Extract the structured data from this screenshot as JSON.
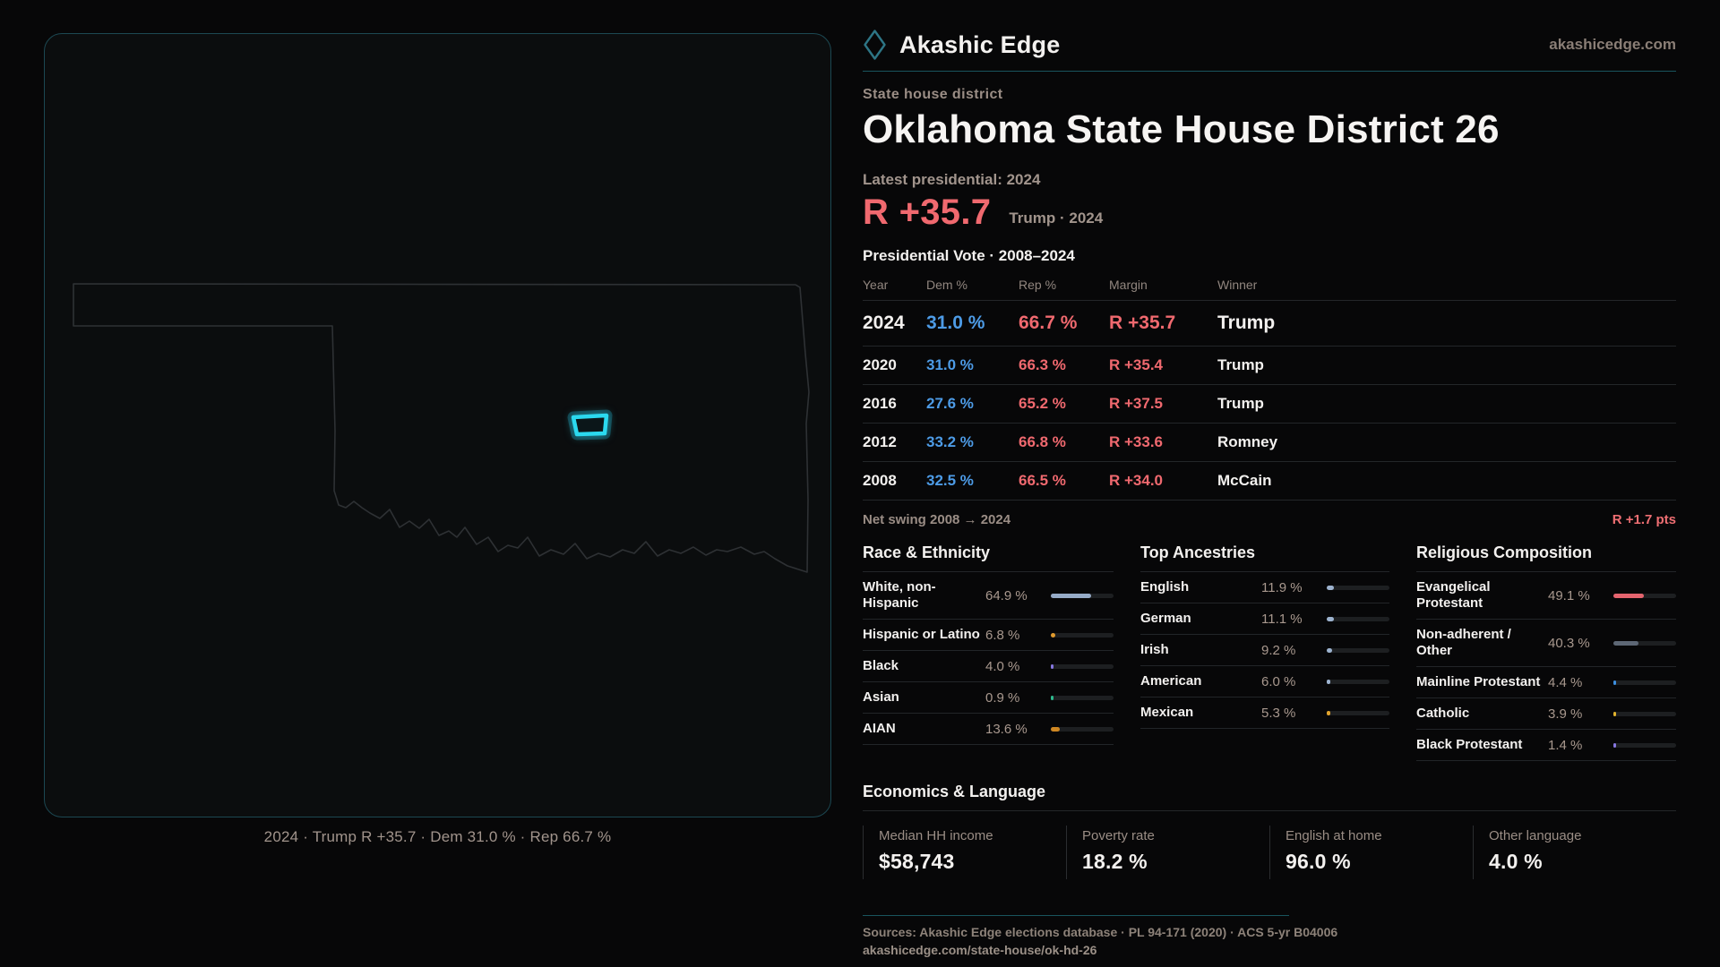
{
  "brand": {
    "name": "Akashic Edge",
    "domain": "akashicedge.com"
  },
  "eyebrow": "State house district",
  "title": "Oklahoma State House District 26",
  "latest": {
    "label": "Latest presidential: 2024",
    "margin": "R +35.7",
    "detail": "Trump · 2024"
  },
  "vote_table": {
    "title": "Presidential Vote · 2008–2024",
    "headers": [
      "Year",
      "Dem %",
      "Rep %",
      "Margin",
      "Winner"
    ],
    "rows": [
      {
        "year": "2024",
        "dem": "31.0 %",
        "rep": "66.7 %",
        "margin": "R +35.7",
        "winner": "Trump",
        "emphasis": true
      },
      {
        "year": "2020",
        "dem": "31.0 %",
        "rep": "66.3 %",
        "margin": "R +35.4",
        "winner": "Trump",
        "emphasis": false
      },
      {
        "year": "2016",
        "dem": "27.6 %",
        "rep": "65.2 %",
        "margin": "R +37.5",
        "winner": "Trump",
        "emphasis": false
      },
      {
        "year": "2012",
        "dem": "33.2 %",
        "rep": "66.8 %",
        "margin": "R +33.6",
        "winner": "Romney",
        "emphasis": false
      },
      {
        "year": "2008",
        "dem": "32.5 %",
        "rep": "66.5 %",
        "margin": "R +34.0",
        "winner": "McCain",
        "emphasis": false
      }
    ]
  },
  "net_swing": {
    "label": "Net swing 2008 → 2024",
    "value": "R +1.7 pts"
  },
  "demographics": [
    {
      "title": "Race & Ethnicity",
      "rows": [
        {
          "label": "White, non-Hispanic",
          "value": "64.9 %",
          "pct": 64.9,
          "color": "#96abc7"
        },
        {
          "label": "Hispanic or Latino",
          "value": "6.8 %",
          "pct": 6.8,
          "color": "#e09a2d"
        },
        {
          "label": "Black",
          "value": "4.0 %",
          "pct": 4.0,
          "color": "#8677e0"
        },
        {
          "label": "Asian",
          "value": "0.9 %",
          "pct": 0.9,
          "color": "#2eb98d"
        },
        {
          "label": "AIAN",
          "value": "13.6 %",
          "pct": 13.6,
          "color": "#cf8722"
        }
      ]
    },
    {
      "title": "Top Ancestries",
      "rows": [
        {
          "label": "English",
          "value": "11.9 %",
          "pct": 11.9,
          "color": "#9db3cf"
        },
        {
          "label": "German",
          "value": "11.1 %",
          "pct": 11.1,
          "color": "#9db3cf"
        },
        {
          "label": "Irish",
          "value": "9.2 %",
          "pct": 9.2,
          "color": "#9db3cf"
        },
        {
          "label": "American",
          "value": "6.0 %",
          "pct": 6.0,
          "color": "#9db3cf"
        },
        {
          "label": "Mexican",
          "value": "5.3 %",
          "pct": 5.3,
          "color": "#e0a32d"
        }
      ]
    },
    {
      "title": "Religious Composition",
      "rows": [
        {
          "label": "Evangelical Protestant",
          "value": "49.1 %",
          "pct": 49.1,
          "color": "#e4646e"
        },
        {
          "label": "Non-adherent / Other",
          "value": "40.3 %",
          "pct": 40.3,
          "color": "#5d6775"
        },
        {
          "label": "Mainline Protestant",
          "value": "4.4 %",
          "pct": 4.4,
          "color": "#3d8fe0"
        },
        {
          "label": "Catholic",
          "value": "3.9 %",
          "pct": 3.9,
          "color": "#e0b22d"
        },
        {
          "label": "Black Protestant",
          "value": "1.4 %",
          "pct": 1.4,
          "color": "#8677e0"
        }
      ]
    }
  ],
  "economics": {
    "title": "Economics & Language",
    "stats": [
      {
        "label": "Median HH income",
        "value": "$58,743"
      },
      {
        "label": "Poverty rate",
        "value": "18.2 %"
      },
      {
        "label": "English at home",
        "value": "96.0 %"
      },
      {
        "label": "Other language",
        "value": "4.0 %"
      }
    ]
  },
  "footer": {
    "sources": "Sources: Akashic Edge elections database · PL 94-171 (2020) · ACS 5-yr B04006",
    "url": "akashicedge.com/state-house/ok-hd-26"
  },
  "map": {
    "caption": "2024 · Trump R +35.7 · Dem 31.0 % · Rep 66.7 %"
  },
  "colors": {
    "accent_teal": "#2bd9ef",
    "dem_blue": "#4d9be6",
    "rep_red": "#f0696f"
  }
}
